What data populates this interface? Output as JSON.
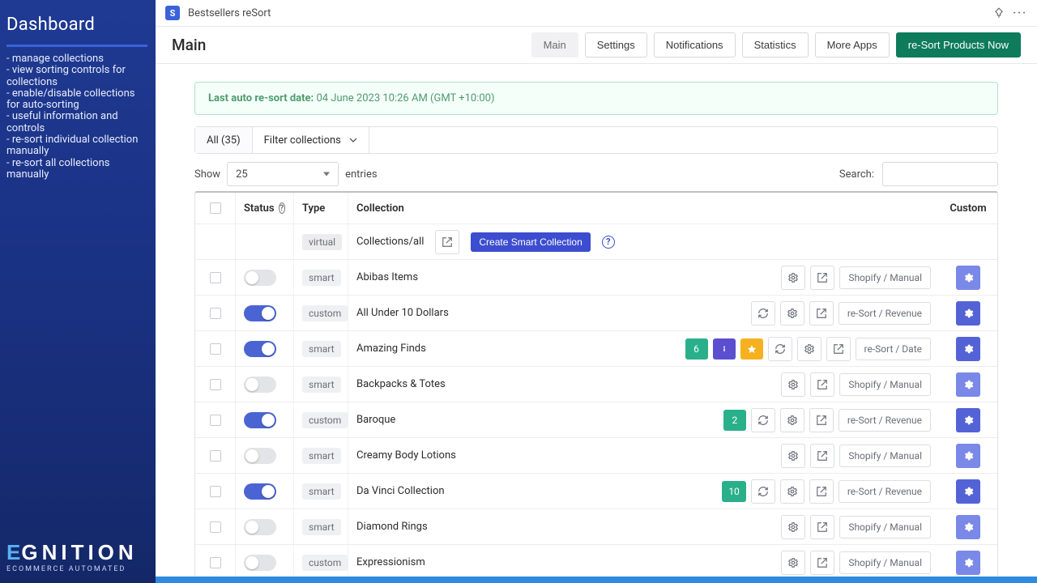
{
  "sidebar": {
    "title": "Dashboard",
    "items": [
      "- manage collections",
      "- view sorting controls for collections",
      "- enable/disable collections for auto-sorting",
      "-  useful information and controls",
      "- re-sort individual collection manually",
      "- re-sort all collections manually"
    ],
    "logo_accent": "E",
    "logo_rest": "GNITION",
    "logo_sub": "ECOMMERCE AUTOMATED"
  },
  "topbar": {
    "app_name": "Bestsellers reSort"
  },
  "header": {
    "title": "Main",
    "tabs": {
      "main": "Main",
      "settings": "Settings",
      "notifications": "Notifications",
      "statistics": "Statistics",
      "more_apps": "More Apps",
      "resort_now": "re-Sort Products Now"
    }
  },
  "info": {
    "label": "Last auto re-sort date:",
    "value": "04 June 2023 10:26 AM (GMT +10:00)"
  },
  "filterbar": {
    "all": "All (35)",
    "filter": "Filter collections"
  },
  "controls": {
    "show": "Show",
    "entries": "entries",
    "page_size": "25",
    "search_label": "Search:"
  },
  "columns": {
    "status": "Status",
    "type": "Type",
    "collection": "Collection",
    "custom": "Custom"
  },
  "virtual_row": {
    "type": "virtual",
    "label": "Collections/all",
    "create_btn": "Create Smart Collection"
  },
  "rows": [
    {
      "enabled": false,
      "type": "smart",
      "name": "Abibas Items",
      "count": null,
      "info": false,
      "star": false,
      "refresh": false,
      "settings": true,
      "open": true,
      "sort": "Shopify / Manual",
      "gear_strong": false
    },
    {
      "enabled": true,
      "type": "custom",
      "name": "All Under 10 Dollars",
      "count": null,
      "info": false,
      "star": false,
      "refresh": true,
      "settings": true,
      "open": true,
      "sort": "re-Sort / Revenue",
      "gear_strong": true
    },
    {
      "enabled": true,
      "type": "smart",
      "name": "Amazing Finds",
      "count": 6,
      "info": true,
      "star": true,
      "refresh": true,
      "settings": true,
      "open": true,
      "sort": "re-Sort / Date",
      "gear_strong": true
    },
    {
      "enabled": false,
      "type": "smart",
      "name": "Backpacks & Totes",
      "count": null,
      "info": false,
      "star": false,
      "refresh": false,
      "settings": true,
      "open": true,
      "sort": "Shopify / Manual",
      "gear_strong": false
    },
    {
      "enabled": true,
      "type": "custom",
      "name": "Baroque",
      "count": 2,
      "info": false,
      "star": false,
      "refresh": true,
      "settings": true,
      "open": true,
      "sort": "re-Sort / Revenue",
      "gear_strong": true
    },
    {
      "enabled": false,
      "type": "smart",
      "name": "Creamy Body Lotions",
      "count": null,
      "info": false,
      "star": false,
      "refresh": false,
      "settings": true,
      "open": true,
      "sort": "Shopify / Manual",
      "gear_strong": false
    },
    {
      "enabled": true,
      "type": "smart",
      "name": "Da Vinci Collection",
      "count": 10,
      "info": false,
      "star": false,
      "refresh": true,
      "settings": true,
      "open": true,
      "sort": "re-Sort / Revenue",
      "gear_strong": true
    },
    {
      "enabled": false,
      "type": "smart",
      "name": "Diamond Rings",
      "count": null,
      "info": false,
      "star": false,
      "refresh": false,
      "settings": true,
      "open": true,
      "sort": "Shopify / Manual",
      "gear_strong": false
    },
    {
      "enabled": false,
      "type": "custom",
      "name": "Expressionism",
      "count": null,
      "info": false,
      "star": false,
      "refresh": false,
      "settings": true,
      "open": true,
      "sort": "Shopify / Manual",
      "gear_strong": false
    }
  ],
  "colors": {
    "sidebar_top": "#1f3a93",
    "sidebar_bottom": "#142868",
    "primary_green": "#0e7b5a",
    "info_border": "#b2e3c6",
    "info_text": "#4f9a6e",
    "toggle_on": "#4a65d3",
    "pill_cnt": "#29b08a",
    "pill_info": "#5c4fcf",
    "pill_star": "#f5b120",
    "create_smart": "#3c4dcf",
    "gear_weak": "#7a88e8",
    "gear_strong": "#5363d6",
    "bottombar": "#2e8be0"
  }
}
